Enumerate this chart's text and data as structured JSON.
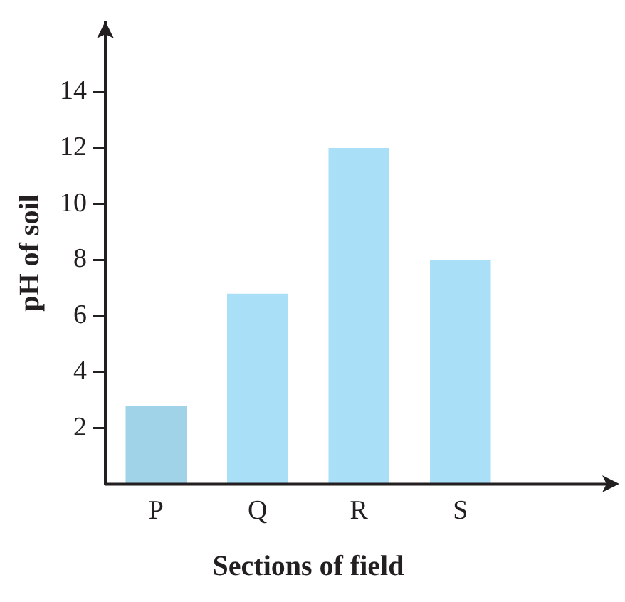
{
  "chart_data": {
    "type": "bar",
    "xlabel": "Sections of field",
    "ylabel": "pH of soil",
    "categories": [
      "P",
      "Q",
      "R",
      "S"
    ],
    "values": [
      2.8,
      6.8,
      12,
      8
    ],
    "colors": [
      "#a0d3e8",
      "#aadff8",
      "#aadff8",
      "#aadff8"
    ],
    "ylim": [
      0,
      16.5
    ],
    "yticks": [
      2,
      4,
      6,
      8,
      10,
      12,
      14
    ],
    "grid": false,
    "legend": false
  }
}
